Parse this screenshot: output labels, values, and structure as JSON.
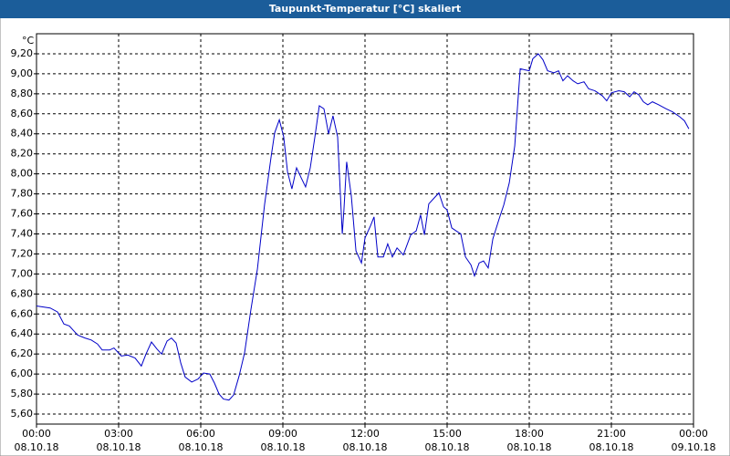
{
  "chart_data": {
    "type": "line",
    "title": "Taupunkt-Temperatur [°C] skaliert",
    "y_label": "°C",
    "x": [
      0,
      0.5,
      0.77,
      1,
      1.2,
      1.5,
      1.77,
      2,
      2.23,
      2.4,
      2.67,
      2.83,
      3.1,
      3.33,
      3.6,
      3.83,
      4,
      4.2,
      4.4,
      4.57,
      4.77,
      4.93,
      5.1,
      5.27,
      5.43,
      5.67,
      5.9,
      6.1,
      6.33,
      6.5,
      6.67,
      6.83,
      7.03,
      7.2,
      7.4,
      7.6,
      7.83,
      8.07,
      8.33,
      8.57,
      8.7,
      8.87,
      9.03,
      9.17,
      9.33,
      9.5,
      9.67,
      9.83,
      10,
      10.17,
      10.33,
      10.5,
      10.67,
      10.83,
      11,
      11.17,
      11.23,
      11.33,
      11.5,
      11.67,
      11.87,
      12,
      12.2,
      12.33,
      12.47,
      12.67,
      12.83,
      13,
      13.17,
      13.4,
      13.67,
      13.87,
      14.03,
      14.17,
      14.33,
      14.53,
      14.7,
      14.87,
      15,
      15.17,
      15.33,
      15.5,
      15.67,
      15.87,
      16,
      16.17,
      16.33,
      16.5,
      16.67,
      16.9,
      17.07,
      17.27,
      17.47,
      17.67,
      17.83,
      18,
      18.13,
      18.33,
      18.5,
      18.67,
      18.9,
      19.07,
      19.23,
      19.4,
      19.6,
      19.77,
      20,
      20.17,
      20.4,
      20.67,
      20.83,
      21,
      21.27,
      21.47,
      21.67,
      21.83,
      22,
      22.17,
      22.33,
      22.5,
      22.73,
      23,
      23.23,
      23.5,
      23.67,
      23.83
    ],
    "series": [
      {
        "name": "Taupunkt",
        "color": "#0000c8",
        "values": [
          6.68,
          6.66,
          6.62,
          6.5,
          6.48,
          6.39,
          6.36,
          6.34,
          6.3,
          6.24,
          6.24,
          6.26,
          6.18,
          6.19,
          6.16,
          6.08,
          6.2,
          6.32,
          6.25,
          6.2,
          6.33,
          6.36,
          6.31,
          6.11,
          5.97,
          5.92,
          5.95,
          6.01,
          6.0,
          5.91,
          5.8,
          5.75,
          5.74,
          5.79,
          5.98,
          6.21,
          6.64,
          7.05,
          7.69,
          8.17,
          8.41,
          8.54,
          8.37,
          8.02,
          7.85,
          8.06,
          7.96,
          7.87,
          8.06,
          8.37,
          8.68,
          8.65,
          8.4,
          8.58,
          8.37,
          7.4,
          7.64,
          8.12,
          7.78,
          7.23,
          7.11,
          7.36,
          7.48,
          7.57,
          7.17,
          7.17,
          7.3,
          7.17,
          7.26,
          7.19,
          7.39,
          7.43,
          7.59,
          7.39,
          7.7,
          7.76,
          7.81,
          7.67,
          7.64,
          7.46,
          7.43,
          7.4,
          7.17,
          7.09,
          6.98,
          7.11,
          7.13,
          7.06,
          7.35,
          7.55,
          7.69,
          7.91,
          8.28,
          9.05,
          9.04,
          9.03,
          9.15,
          9.2,
          9.14,
          9.03,
          9.01,
          9.03,
          8.93,
          8.98,
          8.93,
          8.9,
          8.92,
          8.85,
          8.83,
          8.78,
          8.73,
          8.81,
          8.83,
          8.82,
          8.77,
          8.82,
          8.79,
          8.72,
          8.69,
          8.72,
          8.69,
          8.65,
          8.62,
          8.57,
          8.53,
          8.45
        ]
      }
    ],
    "xlim": [
      0,
      24
    ],
    "xticks": [
      {
        "value": 0,
        "label": "00:00",
        "date": "08.10.18"
      },
      {
        "value": 3,
        "label": "03:00",
        "date": "08.10.18"
      },
      {
        "value": 6,
        "label": "06:00",
        "date": "08.10.18"
      },
      {
        "value": 9,
        "label": "09:00",
        "date": "08.10.18"
      },
      {
        "value": 12,
        "label": "12:00",
        "date": "08.10.18"
      },
      {
        "value": 15,
        "label": "15:00",
        "date": "08.10.18"
      },
      {
        "value": 18,
        "label": "18:00",
        "date": "08.10.18"
      },
      {
        "value": 21,
        "label": "21:00",
        "date": "08.10.18"
      },
      {
        "value": 24,
        "label": "00:00",
        "date": "09.10.18"
      }
    ],
    "ylim": [
      5.5,
      9.4
    ],
    "yticks": [
      {
        "value": 5.6,
        "label": "5,60"
      },
      {
        "value": 5.8,
        "label": "5,80"
      },
      {
        "value": 6.0,
        "label": "6,00"
      },
      {
        "value": 6.2,
        "label": "6,20"
      },
      {
        "value": 6.4,
        "label": "6,40"
      },
      {
        "value": 6.6,
        "label": "6,60"
      },
      {
        "value": 6.8,
        "label": "6,80"
      },
      {
        "value": 7.0,
        "label": "7,00"
      },
      {
        "value": 7.2,
        "label": "7,20"
      },
      {
        "value": 7.4,
        "label": "7,40"
      },
      {
        "value": 7.6,
        "label": "7,60"
      },
      {
        "value": 7.8,
        "label": "7,80"
      },
      {
        "value": 8.0,
        "label": "8,00"
      },
      {
        "value": 8.2,
        "label": "8,20"
      },
      {
        "value": 8.4,
        "label": "8,40"
      },
      {
        "value": 8.6,
        "label": "8,60"
      },
      {
        "value": 8.8,
        "label": "8,80"
      },
      {
        "value": 9.0,
        "label": "9,00"
      },
      {
        "value": 9.2,
        "label": "9,20"
      }
    ],
    "grid": true
  }
}
